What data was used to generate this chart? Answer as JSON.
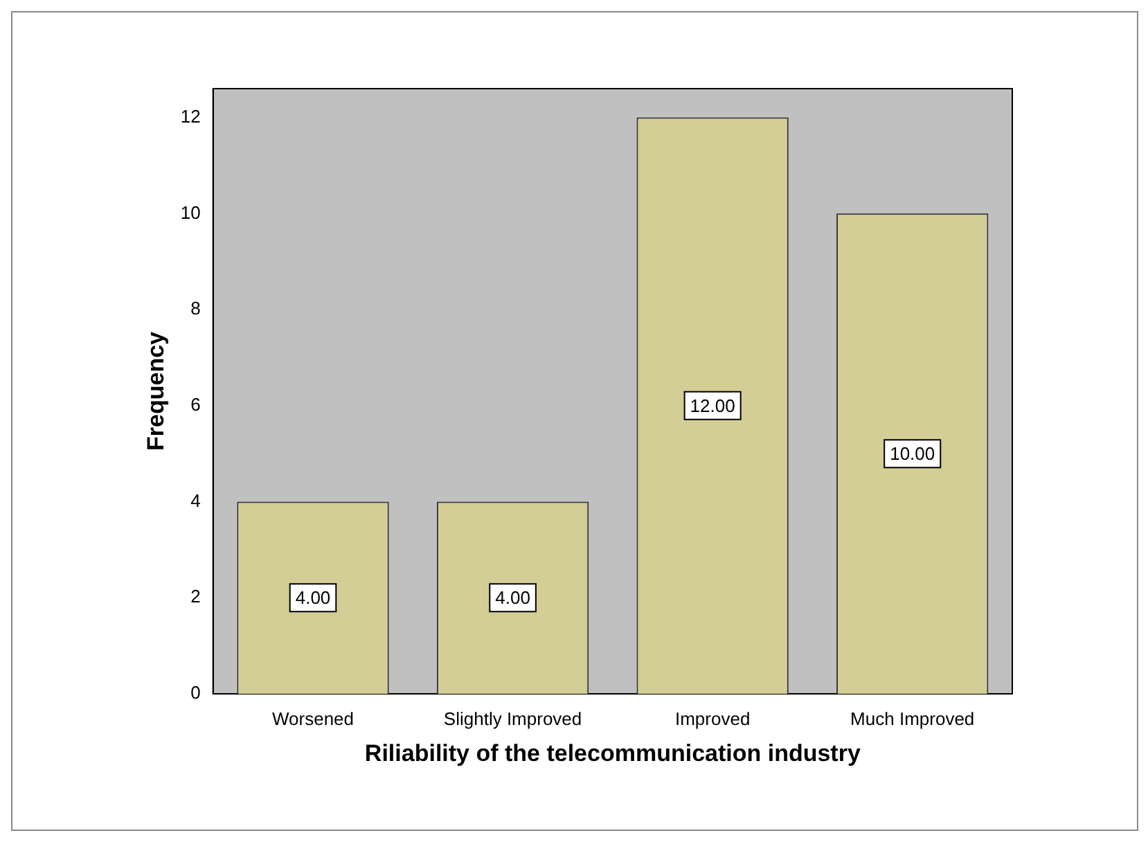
{
  "chart_data": {
    "type": "bar",
    "xlabel": "Riliability of the telecommunication industry",
    "ylabel": "Frequency",
    "categories": [
      "Worsened",
      "Slightly Improved",
      "Improved",
      "Much Improved"
    ],
    "values": [
      4,
      4,
      12,
      10
    ],
    "value_labels": [
      "4.00",
      "4.00",
      "12.00",
      "10.00"
    ],
    "color": "#d3cd96",
    "ylim": [
      0,
      12.6
    ],
    "yticks": [
      0,
      2,
      4,
      6,
      8,
      10,
      12
    ],
    "grid": false,
    "legend": false
  }
}
